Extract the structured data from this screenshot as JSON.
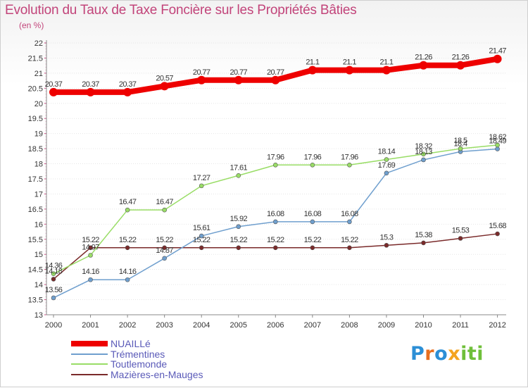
{
  "header": {
    "title": "Evolution du Taux de Taxe Foncière sur les Propriétés Bâties",
    "unit": "(en %)"
  },
  "logo": {
    "letters": [
      "P",
      "r",
      "o",
      "x",
      "i",
      "t",
      "i"
    ]
  },
  "chart_data": {
    "type": "line",
    "title": "Evolution du Taux de Taxe Foncière sur les Propriétés Bâties",
    "ylabel": "(en %)",
    "xlabel": "",
    "categories": [
      "2000",
      "2001",
      "2002",
      "2003",
      "2004",
      "2005",
      "2006",
      "2007",
      "2008",
      "2009",
      "2010",
      "2011",
      "2012"
    ],
    "ylim": [
      13,
      22
    ],
    "yticks": [
      "13",
      "13.5",
      "14",
      "14.5",
      "15",
      "15.5",
      "16",
      "16.5",
      "17",
      "17.5",
      "18",
      "18.5",
      "19",
      "19.5",
      "20",
      "20.5",
      "21",
      "21.5",
      "22"
    ],
    "legend_position": "bottom-left",
    "series": [
      {
        "name": "NUAILLé",
        "color": "#ee0000",
        "values": [
          20.37,
          20.37,
          20.37,
          20.57,
          20.77,
          20.77,
          20.77,
          21.1,
          21.1,
          21.1,
          21.26,
          21.26,
          21.47
        ],
        "labels": [
          "20.37",
          "20.37",
          "20.37",
          "20.57",
          "20.77",
          "20.77",
          "20.77",
          "21.1",
          "21.1",
          "21.1",
          "21.26",
          "21.26",
          "21.47"
        ]
      },
      {
        "name": "Trémentines",
        "color": "#6f9fce",
        "values": [
          13.56,
          14.16,
          14.16,
          14.87,
          15.61,
          15.92,
          16.08,
          16.08,
          16.08,
          17.69,
          18.13,
          18.4,
          18.49
        ],
        "labels": [
          "13.56",
          "14.16",
          "14.16",
          "14.87",
          "15.61",
          "15.92",
          "16.08",
          "16.08",
          "16.08",
          "17.69",
          "18.13",
          "18.4",
          "18.49"
        ]
      },
      {
        "name": "Toutlemonde",
        "color": "#99dd66",
        "values": [
          14.36,
          14.97,
          16.47,
          16.47,
          17.27,
          17.61,
          17.96,
          17.96,
          17.96,
          18.14,
          18.32,
          18.5,
          18.62
        ],
        "labels": [
          "14.36",
          "14.97",
          "16.47",
          "16.47",
          "17.27",
          "17.61",
          "17.96",
          "17.96",
          "17.96",
          "18.14",
          "18.32",
          "18.5",
          "18.62"
        ]
      },
      {
        "name": "Mazières-en-Mauges",
        "color": "#7a2a2a",
        "values": [
          14.18,
          15.22,
          15.22,
          15.22,
          15.22,
          15.22,
          15.22,
          15.22,
          15.22,
          15.3,
          15.38,
          15.53,
          15.68
        ],
        "labels": [
          "14.18",
          "15.22",
          "15.22",
          "15.22",
          "15.22",
          "15.22",
          "15.22",
          "15.22",
          "15.22",
          "15.3",
          "15.38",
          "15.53",
          "15.68"
        ]
      }
    ]
  }
}
